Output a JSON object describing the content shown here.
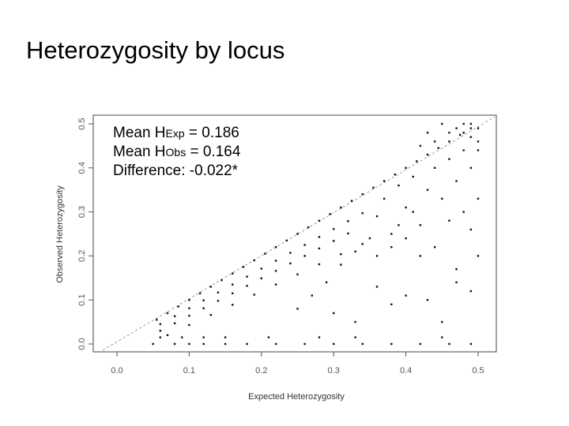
{
  "title": "Heterozygosity by locus",
  "stats": {
    "line1_prefix": "Mean H",
    "line1_sub": "Exp",
    "line1_value": " = 0.186",
    "line2_prefix": "Mean H",
    "line2_sub": "Obs",
    "line2_value": " = 0.164",
    "line3": "Difference: -0.022*"
  },
  "chart_data": {
    "type": "scatter",
    "title": "",
    "xlabel": "Expected Heterozygosity",
    "ylabel": "Observed Heterozygosity",
    "xlim": [
      0.0,
      0.5
    ],
    "ylim": [
      0.0,
      0.5
    ],
    "xticks": [
      "0.0",
      "0.1",
      "0.2",
      "0.3",
      "0.4",
      "0.5"
    ],
    "yticks": [
      "0.0",
      "0.1",
      "0.2",
      "0.3",
      "0.4",
      "0.5"
    ],
    "reference_line": {
      "style": "dashed",
      "from": [
        0.0,
        0.0
      ],
      "to": [
        0.5,
        0.5
      ]
    },
    "grid": false,
    "point_color": "#111111",
    "series": [
      {
        "values": [
          [
            0.055,
            0.055
          ],
          [
            0.07,
            0.07
          ],
          [
            0.085,
            0.085
          ],
          [
            0.1,
            0.1
          ],
          [
            0.115,
            0.115
          ],
          [
            0.13,
            0.13
          ],
          [
            0.145,
            0.145
          ],
          [
            0.16,
            0.16
          ],
          [
            0.175,
            0.175
          ],
          [
            0.19,
            0.19
          ],
          [
            0.205,
            0.205
          ],
          [
            0.22,
            0.22
          ],
          [
            0.235,
            0.235
          ],
          [
            0.25,
            0.25
          ],
          [
            0.265,
            0.265
          ],
          [
            0.28,
            0.28
          ],
          [
            0.295,
            0.295
          ],
          [
            0.31,
            0.31
          ],
          [
            0.325,
            0.325
          ],
          [
            0.34,
            0.34
          ],
          [
            0.355,
            0.355
          ],
          [
            0.37,
            0.37
          ],
          [
            0.385,
            0.385
          ],
          [
            0.4,
            0.4
          ],
          [
            0.415,
            0.415
          ],
          [
            0.43,
            0.43
          ],
          [
            0.445,
            0.445
          ],
          [
            0.46,
            0.46
          ],
          [
            0.475,
            0.475
          ],
          [
            0.49,
            0.49
          ],
          [
            0.06,
            0.045
          ],
          [
            0.08,
            0.063
          ],
          [
            0.1,
            0.081
          ],
          [
            0.12,
            0.099
          ],
          [
            0.14,
            0.117
          ],
          [
            0.16,
            0.135
          ],
          [
            0.18,
            0.153
          ],
          [
            0.2,
            0.171
          ],
          [
            0.22,
            0.189
          ],
          [
            0.24,
            0.207
          ],
          [
            0.26,
            0.225
          ],
          [
            0.28,
            0.243
          ],
          [
            0.3,
            0.261
          ],
          [
            0.32,
            0.279
          ],
          [
            0.34,
            0.297
          ],
          [
            0.06,
            0.03
          ],
          [
            0.08,
            0.047
          ],
          [
            0.1,
            0.064
          ],
          [
            0.12,
            0.081
          ],
          [
            0.14,
            0.098
          ],
          [
            0.16,
            0.115
          ],
          [
            0.18,
            0.132
          ],
          [
            0.2,
            0.149
          ],
          [
            0.22,
            0.166
          ],
          [
            0.24,
            0.183
          ],
          [
            0.26,
            0.2
          ],
          [
            0.28,
            0.217
          ],
          [
            0.3,
            0.234
          ],
          [
            0.32,
            0.251
          ],
          [
            0.07,
            0.02
          ],
          [
            0.1,
            0.043
          ],
          [
            0.13,
            0.066
          ],
          [
            0.16,
            0.089
          ],
          [
            0.19,
            0.112
          ],
          [
            0.22,
            0.135
          ],
          [
            0.25,
            0.158
          ],
          [
            0.28,
            0.181
          ],
          [
            0.31,
            0.204
          ],
          [
            0.34,
            0.227
          ],
          [
            0.05,
            0.0
          ],
          [
            0.08,
            0.0
          ],
          [
            0.1,
            0.0
          ],
          [
            0.12,
            0.0
          ],
          [
            0.15,
            0.0
          ],
          [
            0.18,
            0.0
          ],
          [
            0.22,
            0.0
          ],
          [
            0.26,
            0.0
          ],
          [
            0.3,
            0.0
          ],
          [
            0.34,
            0.0
          ],
          [
            0.38,
            0.0
          ],
          [
            0.42,
            0.0
          ],
          [
            0.46,
            0.0
          ],
          [
            0.49,
            0.0
          ],
          [
            0.06,
            0.015
          ],
          [
            0.09,
            0.015
          ],
          [
            0.12,
            0.015
          ],
          [
            0.15,
            0.015
          ],
          [
            0.21,
            0.015
          ],
          [
            0.28,
            0.015
          ],
          [
            0.33,
            0.015
          ],
          [
            0.45,
            0.015
          ],
          [
            0.36,
            0.29
          ],
          [
            0.37,
            0.33
          ],
          [
            0.38,
            0.25
          ],
          [
            0.39,
            0.36
          ],
          [
            0.4,
            0.31
          ],
          [
            0.41,
            0.38
          ],
          [
            0.42,
            0.27
          ],
          [
            0.43,
            0.35
          ],
          [
            0.44,
            0.4
          ],
          [
            0.45,
            0.33
          ],
          [
            0.46,
            0.42
          ],
          [
            0.47,
            0.37
          ],
          [
            0.48,
            0.44
          ],
          [
            0.49,
            0.4
          ],
          [
            0.5,
            0.46
          ],
          [
            0.42,
            0.45
          ],
          [
            0.44,
            0.46
          ],
          [
            0.46,
            0.48
          ],
          [
            0.47,
            0.49
          ],
          [
            0.48,
            0.48
          ],
          [
            0.49,
            0.5
          ],
          [
            0.5,
            0.49
          ],
          [
            0.45,
            0.5
          ],
          [
            0.43,
            0.48
          ],
          [
            0.5,
            0.44
          ],
          [
            0.49,
            0.47
          ],
          [
            0.48,
            0.5
          ],
          [
            0.36,
            0.2
          ],
          [
            0.38,
            0.22
          ],
          [
            0.4,
            0.24
          ],
          [
            0.42,
            0.2
          ],
          [
            0.44,
            0.22
          ],
          [
            0.46,
            0.28
          ],
          [
            0.48,
            0.3
          ],
          [
            0.5,
            0.33
          ],
          [
            0.47,
            0.17
          ],
          [
            0.49,
            0.26
          ],
          [
            0.3,
            0.07
          ],
          [
            0.33,
            0.05
          ],
          [
            0.36,
            0.13
          ],
          [
            0.38,
            0.09
          ],
          [
            0.4,
            0.11
          ],
          [
            0.43,
            0.1
          ],
          [
            0.45,
            0.05
          ],
          [
            0.47,
            0.14
          ],
          [
            0.49,
            0.12
          ],
          [
            0.5,
            0.2
          ],
          [
            0.25,
            0.08
          ],
          [
            0.27,
            0.11
          ],
          [
            0.29,
            0.14
          ],
          [
            0.31,
            0.18
          ],
          [
            0.33,
            0.21
          ],
          [
            0.35,
            0.24
          ],
          [
            0.39,
            0.27
          ],
          [
            0.41,
            0.3
          ]
        ]
      }
    ]
  }
}
